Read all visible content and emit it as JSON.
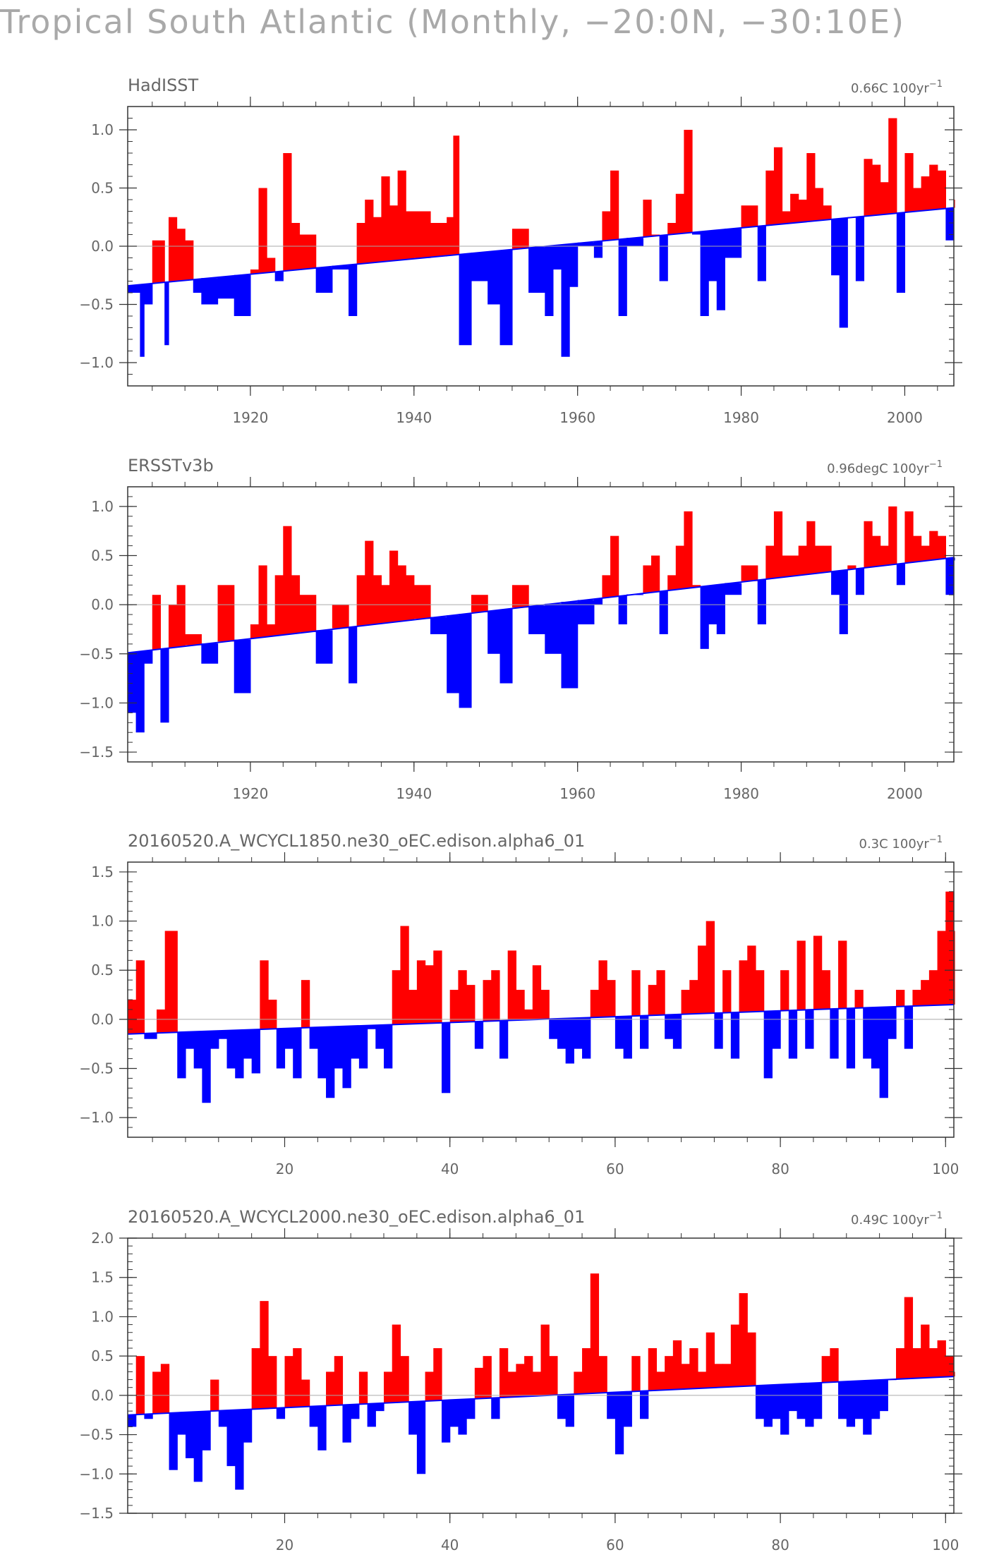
{
  "title": "Tropical South Atlantic (Monthly, −20:0N, −30:10E)",
  "colors": {
    "positive": "#ff0000",
    "negative": "#0000ff",
    "zero_line": "#aaaaaa",
    "axis": "#333333",
    "text": "#666666"
  },
  "chart_data": [
    {
      "type": "bar",
      "title": "HadISST",
      "trend_label": "0.66C 100yr",
      "trend_units_exp": "−1",
      "xlabel": "",
      "ylabel": "",
      "xlim": [
        1905,
        2006
      ],
      "ylim": [
        -1.2,
        1.2
      ],
      "xticks": [
        1920,
        1940,
        1960,
        1980,
        2000
      ],
      "xtick_labels": [
        "1920",
        "1940",
        "1960",
        "1980",
        "2000"
      ],
      "yticks": [
        1.0,
        0.5,
        0.0,
        -0.5,
        -1.0
      ],
      "ytick_labels": [
        "1.0",
        "0.5",
        "0.0",
        "−0.5",
        "−1.0"
      ],
      "trend_start": [
        1905,
        -0.34
      ],
      "trend_end": [
        2006,
        0.33
      ],
      "series": [
        {
          "name": "anomaly",
          "x": [
            1905.0,
            1906.5,
            1907.0,
            1908.0,
            1909.5,
            1910.0,
            1911.0,
            1912.0,
            1913.0,
            1914.0,
            1916.0,
            1918.0,
            1920.0,
            1921.0,
            1922.0,
            1923.0,
            1924.0,
            1925.0,
            1926.0,
            1928.0,
            1930.0,
            1932.0,
            1933.0,
            1934.0,
            1935.0,
            1936.0,
            1937.0,
            1938.0,
            1939.0,
            1940.0,
            1942.0,
            1944.0,
            1944.8,
            1945.5,
            1947.0,
            1949.0,
            1950.5,
            1952.0,
            1954.0,
            1956.0,
            1957.0,
            1958.0,
            1959.0,
            1960.0,
            1962.0,
            1963.0,
            1964.0,
            1965.0,
            1966.0,
            1968.0,
            1969.0,
            1970.0,
            1971.0,
            1972.0,
            1973.0,
            1974.0,
            1975.0,
            1976.0,
            1977.0,
            1978.0,
            1980.0,
            1982.0,
            1983.0,
            1984.0,
            1985.0,
            1986.0,
            1987.0,
            1988.0,
            1989.0,
            1990.0,
            1991.0,
            1992.0,
            1993.0,
            1994.0,
            1995.0,
            1996.0,
            1997.0,
            1998.0,
            1999.0,
            2000.0,
            2001.0,
            2002.0,
            2003.0,
            2004.0,
            2005.0,
            2006.0
          ],
          "values": [
            -0.4,
            -0.95,
            -0.5,
            0.05,
            -0.85,
            0.25,
            0.15,
            0.05,
            -0.4,
            -0.5,
            -0.45,
            -0.6,
            -0.2,
            0.5,
            -0.1,
            -0.3,
            0.8,
            0.2,
            0.1,
            -0.4,
            -0.2,
            -0.6,
            0.2,
            0.4,
            0.25,
            0.6,
            0.35,
            0.65,
            0.3,
            0.3,
            0.2,
            0.25,
            0.95,
            -0.85,
            -0.3,
            -0.5,
            -0.85,
            0.15,
            -0.4,
            -0.6,
            -0.2,
            -0.95,
            -0.35,
            0.0,
            -0.1,
            0.3,
            0.65,
            -0.6,
            0.0,
            0.4,
            0.1,
            -0.3,
            0.2,
            0.45,
            1.0,
            0.1,
            -0.6,
            -0.3,
            -0.55,
            -0.1,
            0.35,
            -0.3,
            0.65,
            0.85,
            0.3,
            0.45,
            0.4,
            0.8,
            0.5,
            0.35,
            -0.25,
            -0.7,
            0.25,
            -0.3,
            0.75,
            0.7,
            0.55,
            1.1,
            -0.4,
            0.8,
            0.5,
            0.6,
            0.7,
            0.65,
            0.05,
            0.4
          ]
        }
      ]
    },
    {
      "type": "bar",
      "title": "ERSSTv3b",
      "trend_label": "0.96degC 100yr",
      "trend_units_exp": "−1",
      "xlabel": "",
      "ylabel": "",
      "xlim": [
        1905,
        2006
      ],
      "ylim": [
        -1.6,
        1.2
      ],
      "xticks": [
        1920,
        1940,
        1960,
        1980,
        2000
      ],
      "xtick_labels": [
        "1920",
        "1940",
        "1960",
        "1980",
        "2000"
      ],
      "yticks": [
        1.0,
        0.5,
        0.0,
        -0.5,
        -1.0,
        -1.5
      ],
      "ytick_labels": [
        "1.0",
        "0.5",
        "0.0",
        "−0.5",
        "−1.0",
        "−1.5"
      ],
      "trend_start": [
        1905,
        -0.49
      ],
      "trend_end": [
        2006,
        0.48
      ],
      "series": [
        {
          "name": "anomaly",
          "x": [
            1905.0,
            1906.0,
            1907.0,
            1908.0,
            1909.0,
            1910.0,
            1911.0,
            1912.0,
            1914.0,
            1916.0,
            1918.0,
            1920.0,
            1921.0,
            1922.0,
            1923.0,
            1924.0,
            1925.0,
            1926.0,
            1928.0,
            1930.0,
            1932.0,
            1933.0,
            1934.0,
            1935.0,
            1936.0,
            1937.0,
            1938.0,
            1939.0,
            1940.0,
            1942.0,
            1944.0,
            1945.5,
            1947.0,
            1949.0,
            1950.5,
            1952.0,
            1954.0,
            1956.0,
            1958.0,
            1960.0,
            1962.0,
            1963.0,
            1964.0,
            1965.0,
            1966.0,
            1968.0,
            1969.0,
            1970.0,
            1971.0,
            1972.0,
            1973.0,
            1974.0,
            1975.0,
            1976.0,
            1977.0,
            1978.0,
            1980.0,
            1982.0,
            1983.0,
            1984.0,
            1985.0,
            1986.0,
            1987.0,
            1988.0,
            1989.0,
            1990.0,
            1991.0,
            1992.0,
            1993.0,
            1994.0,
            1995.0,
            1996.0,
            1997.0,
            1998.0,
            1999.0,
            2000.0,
            2001.0,
            2002.0,
            2003.0,
            2004.0,
            2005.0,
            2006.0
          ],
          "values": [
            -1.1,
            -1.3,
            -0.6,
            0.1,
            -1.2,
            0.0,
            0.2,
            -0.3,
            -0.6,
            0.2,
            -0.9,
            -0.2,
            0.4,
            -0.2,
            0.3,
            0.8,
            0.3,
            0.1,
            -0.6,
            0.0,
            -0.8,
            0.3,
            0.65,
            0.3,
            0.2,
            0.55,
            0.4,
            0.3,
            0.2,
            -0.3,
            -0.9,
            -1.05,
            0.1,
            -0.5,
            -0.8,
            0.2,
            -0.3,
            -0.5,
            -0.85,
            -0.2,
            0.0,
            0.3,
            0.7,
            -0.2,
            0.1,
            0.4,
            0.5,
            -0.3,
            0.3,
            0.6,
            0.95,
            0.2,
            -0.45,
            -0.2,
            -0.3,
            0.1,
            0.4,
            -0.2,
            0.6,
            0.95,
            0.5,
            0.5,
            0.6,
            0.85,
            0.6,
            0.6,
            0.1,
            -0.3,
            0.4,
            0.1,
            0.85,
            0.7,
            0.6,
            1.0,
            0.2,
            0.95,
            0.7,
            0.6,
            0.75,
            0.7,
            0.1,
            0.45
          ]
        }
      ]
    },
    {
      "type": "bar",
      "title": "20160520.A_WCYCL1850.ne30_oEC.edison.alpha6_01",
      "trend_label": "0.3C 100yr",
      "trend_units_exp": "−1",
      "xlabel": "",
      "ylabel": "",
      "xlim": [
        1,
        101
      ],
      "ylim": [
        -1.2,
        1.6
      ],
      "xticks": [
        20,
        40,
        60,
        80,
        100
      ],
      "xtick_labels": [
        "20",
        "40",
        "60",
        "80",
        "100"
      ],
      "yticks": [
        1.5,
        1.0,
        0.5,
        0.0,
        -0.5,
        -1.0
      ],
      "ytick_labels": [
        "1.5",
        "1.0",
        "0.5",
        "0.0",
        "−0.5",
        "−1.0"
      ],
      "trend_start": [
        1,
        -0.15
      ],
      "trend_end": [
        101,
        0.15
      ],
      "series": [
        {
          "name": "anomaly",
          "x": [
            1.0,
            2.0,
            3.0,
            4.5,
            5.5,
            7.0,
            8.0,
            9.0,
            10.0,
            11.0,
            12.0,
            13.0,
            14.0,
            15.0,
            16.0,
            17.0,
            18.0,
            19.0,
            20.0,
            21.0,
            22.0,
            23.0,
            24.0,
            25.0,
            26.0,
            27.0,
            28.0,
            29.0,
            30.0,
            31.0,
            32.0,
            33.0,
            34.0,
            35.0,
            36.0,
            37.0,
            38.0,
            39.0,
            40.0,
            41.0,
            42.0,
            43.0,
            44.0,
            45.0,
            46.0,
            47.0,
            48.0,
            49.0,
            50.0,
            51.0,
            52.0,
            53.0,
            54.0,
            55.0,
            56.0,
            57.0,
            58.0,
            59.0,
            60.0,
            61.0,
            62.0,
            63.0,
            64.0,
            65.0,
            66.0,
            67.0,
            68.0,
            69.0,
            70.0,
            71.0,
            72.0,
            73.0,
            74.0,
            75.0,
            76.0,
            77.0,
            78.0,
            79.0,
            80.0,
            81.0,
            82.0,
            83.0,
            84.0,
            85.0,
            86.0,
            87.0,
            88.0,
            89.0,
            90.0,
            91.0,
            92.0,
            93.0,
            94.0,
            95.0,
            96.0,
            97.0,
            98.0,
            99.0,
            100.0,
            101.0
          ],
          "values": [
            0.2,
            0.6,
            -0.2,
            0.1,
            0.9,
            -0.6,
            -0.3,
            -0.5,
            -0.85,
            -0.3,
            -0.2,
            -0.5,
            -0.6,
            -0.4,
            -0.55,
            0.6,
            0.2,
            -0.5,
            -0.3,
            -0.6,
            0.4,
            -0.3,
            -0.6,
            -0.8,
            -0.5,
            -0.7,
            -0.4,
            -0.5,
            -0.1,
            -0.3,
            -0.5,
            0.5,
            0.95,
            0.3,
            0.6,
            0.55,
            0.7,
            -0.75,
            0.3,
            0.5,
            0.35,
            -0.3,
            0.4,
            0.5,
            -0.4,
            0.7,
            0.3,
            0.1,
            0.55,
            0.3,
            -0.2,
            -0.3,
            -0.45,
            -0.3,
            -0.4,
            0.3,
            0.6,
            0.4,
            -0.3,
            -0.4,
            0.5,
            -0.3,
            0.35,
            0.5,
            -0.2,
            -0.3,
            0.3,
            0.4,
            0.75,
            1.0,
            -0.3,
            0.5,
            -0.4,
            0.6,
            0.75,
            0.5,
            -0.6,
            -0.3,
            0.5,
            -0.4,
            0.8,
            -0.3,
            0.85,
            0.5,
            -0.4,
            0.8,
            -0.5,
            0.3,
            -0.4,
            -0.5,
            -0.8,
            -0.2,
            0.3,
            -0.3,
            0.3,
            0.4,
            0.5,
            0.9,
            1.3,
            0.9
          ]
        }
      ]
    },
    {
      "type": "bar",
      "title": "20160520.A_WCYCL2000.ne30_oEC.edison.alpha6_01",
      "trend_label": "0.49C 100yr",
      "trend_units_exp": "−1",
      "xlabel": "",
      "ylabel": "",
      "xlim": [
        1,
        101
      ],
      "ylim": [
        -1.5,
        2.0
      ],
      "xticks": [
        20,
        40,
        60,
        80,
        100
      ],
      "xtick_labels": [
        "20",
        "40",
        "60",
        "80",
        "100"
      ],
      "yticks": [
        2.0,
        1.5,
        1.0,
        0.5,
        0.0,
        -0.5,
        -1.0,
        -1.5
      ],
      "ytick_labels": [
        "2.0",
        "1.5",
        "1.0",
        "0.5",
        "0.0",
        "−0.5",
        "−1.0",
        "−1.5"
      ],
      "trend_start": [
        1,
        -0.25
      ],
      "trend_end": [
        101,
        0.24
      ],
      "series": [
        {
          "name": "anomaly",
          "x": [
            1.0,
            2.0,
            3.0,
            4.0,
            5.0,
            6.0,
            7.0,
            8.0,
            9.0,
            10.0,
            11.0,
            12.0,
            13.0,
            14.0,
            15.0,
            16.0,
            17.0,
            18.0,
            19.0,
            20.0,
            21.0,
            22.0,
            23.0,
            24.0,
            25.0,
            26.0,
            27.0,
            28.0,
            29.0,
            30.0,
            31.0,
            32.0,
            33.0,
            34.0,
            35.0,
            36.0,
            37.0,
            38.0,
            39.0,
            40.0,
            41.0,
            42.0,
            43.0,
            44.0,
            45.0,
            46.0,
            47.0,
            48.0,
            49.0,
            50.0,
            51.0,
            52.0,
            53.0,
            54.0,
            55.0,
            56.0,
            57.0,
            58.0,
            59.0,
            60.0,
            61.0,
            62.0,
            63.0,
            64.0,
            65.0,
            66.0,
            67.0,
            68.0,
            69.0,
            70.0,
            71.0,
            72.0,
            73.0,
            74.0,
            75.0,
            76.0,
            77.0,
            78.0,
            79.0,
            80.0,
            81.0,
            82.0,
            83.0,
            84.0,
            85.0,
            86.0,
            87.0,
            88.0,
            89.0,
            90.0,
            91.0,
            92.0,
            93.0,
            94.0,
            95.0,
            96.0,
            97.0,
            98.0,
            99.0,
            100.0,
            101.0
          ],
          "values": [
            -0.4,
            0.5,
            -0.3,
            0.3,
            0.4,
            -0.95,
            -0.5,
            -0.8,
            -1.1,
            -0.7,
            0.2,
            -0.4,
            -0.9,
            -1.2,
            -0.6,
            0.6,
            1.2,
            0.5,
            -0.3,
            0.5,
            0.6,
            0.2,
            -0.4,
            -0.7,
            0.3,
            0.5,
            -0.6,
            -0.3,
            0.3,
            -0.4,
            -0.2,
            0.3,
            0.9,
            0.5,
            -0.5,
            -1.0,
            0.3,
            0.6,
            -0.6,
            -0.4,
            -0.5,
            -0.3,
            0.35,
            0.5,
            -0.3,
            0.6,
            0.3,
            0.4,
            0.5,
            0.3,
            0.9,
            0.5,
            -0.3,
            -0.4,
            0.3,
            0.6,
            1.55,
            0.5,
            -0.3,
            -0.75,
            -0.4,
            0.5,
            -0.3,
            0.6,
            0.3,
            0.5,
            0.7,
            0.4,
            0.6,
            0.3,
            0.8,
            0.4,
            0.4,
            0.9,
            1.3,
            0.8,
            -0.3,
            -0.4,
            -0.3,
            -0.5,
            -0.2,
            -0.3,
            -0.4,
            -0.3,
            0.5,
            0.6,
            -0.3,
            -0.4,
            -0.3,
            -0.5,
            -0.3,
            -0.2,
            0.2,
            0.6,
            1.25,
            0.6,
            0.9,
            0.6,
            0.7,
            0.5,
            0.3
          ]
        }
      ]
    }
  ]
}
